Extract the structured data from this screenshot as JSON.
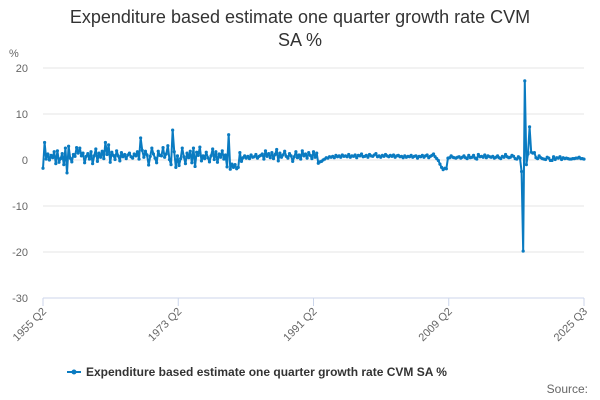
{
  "chart_data": {
    "type": "line",
    "title": "Expenditure based estimate one quarter growth rate CVM SA %",
    "title_lines": [
      "Expenditure based estimate one quarter growth rate CVM",
      "SA %"
    ],
    "ylabel": "%",
    "xlabel": "",
    "ylim": [
      -30,
      20
    ],
    "yticks": [
      20,
      10,
      0,
      -10,
      -20,
      -30
    ],
    "xtick_labels": [
      "1955 Q2",
      "1973 Q2",
      "1991 Q2",
      "2009 Q2",
      "2025 Q3"
    ],
    "x_start": "1955 Q2",
    "x_end": "2025 Q3",
    "series": [
      {
        "name": "Expenditure based estimate one quarter growth rate CVM SA %",
        "color": "#0a7bc1",
        "start_quarter": "1955 Q2",
        "values": [
          -1.8,
          3.8,
          0.2,
          1.3,
          0.0,
          1.0,
          0.5,
          1.8,
          -0.8,
          2.0,
          -0.5,
          0.3,
          1.4,
          -1.0,
          2.6,
          -2.8,
          3.0,
          0.4,
          -0.4,
          1.2,
          0.8,
          2.7,
          1.5,
          2.6,
          0.9,
          1.5,
          -0.6,
          0.8,
          1.4,
          0.2,
          1.8,
          -0.8,
          0.9,
          2.4,
          -0.3,
          1.5,
          0.6,
          1.9,
          0.3,
          3.8,
          1.2,
          3.3,
          -0.5,
          1.7,
          1.0,
          0.1,
          2.0,
          0.9,
          -0.2,
          1.6,
          0.7,
          1.2,
          0.3,
          1.1,
          1.5,
          0.7,
          0.4,
          1.3,
          0.9,
          1.8,
          0.2,
          4.8,
          2.1,
          0.6,
          1.9,
          1.1,
          -1.1,
          0.8,
          2.6,
          1.3,
          0.4,
          -0.6,
          1.9,
          1.0,
          0.9,
          2.7,
          0.6,
          1.3,
          3.1,
          0.1,
          -1.0,
          6.5,
          1.8,
          -1.6,
          0.9,
          -1.2,
          0.3,
          2.6,
          0.7,
          -0.8,
          1.5,
          0.5,
          1.9,
          -0.6,
          2.6,
          -1.4,
          1.7,
          1.0,
          2.8,
          -0.2,
          0.9,
          0.3,
          1.7,
          0.5,
          -0.4,
          0.9,
          2.4,
          0.1,
          1.8,
          -0.5,
          1.3,
          0.6,
          2.0,
          0.2,
          1.1,
          -1.5,
          5.5,
          -2.0,
          -0.9,
          -1.6,
          -1.0,
          -1.9,
          -1.6,
          1.6,
          -0.3,
          0.5,
          0.9,
          0.4,
          0.8,
          0.3,
          1.1,
          0.6,
          0.7,
          1.2,
          0.4,
          0.8,
          1.0,
          1.3,
          0.2,
          2.0,
          0.8,
          1.4,
          0.5,
          1.6,
          0.3,
          1.2,
          2.3,
          -0.2,
          1.5,
          0.6,
          1.1,
          1.9,
          0.8,
          0.4,
          1.4,
          0.9,
          -0.3,
          0.7,
          1.8,
          0.5,
          1.1,
          0.2,
          2.0,
          0.9,
          1.3,
          0.4,
          1.6,
          1.0,
          0.3,
          1.8,
          0.6,
          1.5,
          -0.7,
          -0.4,
          -0.3,
          0.0,
          0.2,
          0.5,
          0.4,
          0.7,
          0.6,
          0.8,
          0.5,
          1.0,
          0.7,
          0.9,
          0.6,
          1.1,
          0.8,
          0.9,
          0.7,
          1.2,
          0.6,
          0.9,
          0.8,
          1.1,
          0.5,
          1.0,
          0.9,
          1.3,
          0.7,
          0.8,
          1.0,
          0.6,
          1.2,
          0.9,
          0.8,
          1.1,
          1.4,
          0.7,
          0.9,
          0.6,
          1.0,
          0.8,
          1.2,
          0.9,
          0.7,
          1.0,
          0.8,
          1.1,
          0.6,
          0.9,
          1.0,
          0.7,
          0.8,
          0.5,
          0.9,
          0.6,
          0.8,
          0.7,
          1.0,
          0.6,
          0.8,
          0.9,
          0.4,
          0.8,
          0.7,
          1.0,
          0.6,
          0.9,
          1.1,
          0.5,
          0.8,
          1.0,
          1.3,
          0.7,
          0.3,
          -0.1,
          -0.9,
          -1.6,
          -2.1,
          -1.8,
          -1.9,
          0.4,
          0.5,
          0.9,
          0.6,
          0.5,
          0.4,
          0.6,
          0.7,
          0.4,
          0.6,
          0.9,
          0.5,
          0.3,
          1.0,
          0.5,
          0.6,
          1.0,
          0.4,
          0.2,
          1.2,
          0.7,
          0.8,
          0.6,
          1.1,
          0.5,
          0.9,
          0.7,
          0.6,
          0.8,
          0.4,
          0.6,
          0.9,
          0.5,
          0.3,
          0.8,
          0.6,
          1.2,
          0.7,
          0.5,
          0.6,
          1.0,
          0.8,
          0.3,
          0.2,
          0.7,
          0.4,
          -2.5,
          -19.8,
          17.2,
          -1.0,
          1.3,
          7.2,
          1.7,
          1.5,
          1.6,
          0.5,
          0.3,
          0.9,
          0.5,
          0.3,
          0.2,
          0.1,
          0.6,
          0.4,
          -0.1,
          -0.1,
          0.7,
          0.1,
          0.5,
          0.4,
          0.7,
          0.1,
          0.5,
          0.3,
          0.4,
          0.3,
          0.2,
          0.2,
          0.3,
          0.3,
          0.4,
          0.4,
          0.6,
          0.3,
          0.3,
          0.2
        ]
      }
    ],
    "grid": true,
    "legend_position": "bottom-center"
  },
  "source_label": "Source:"
}
